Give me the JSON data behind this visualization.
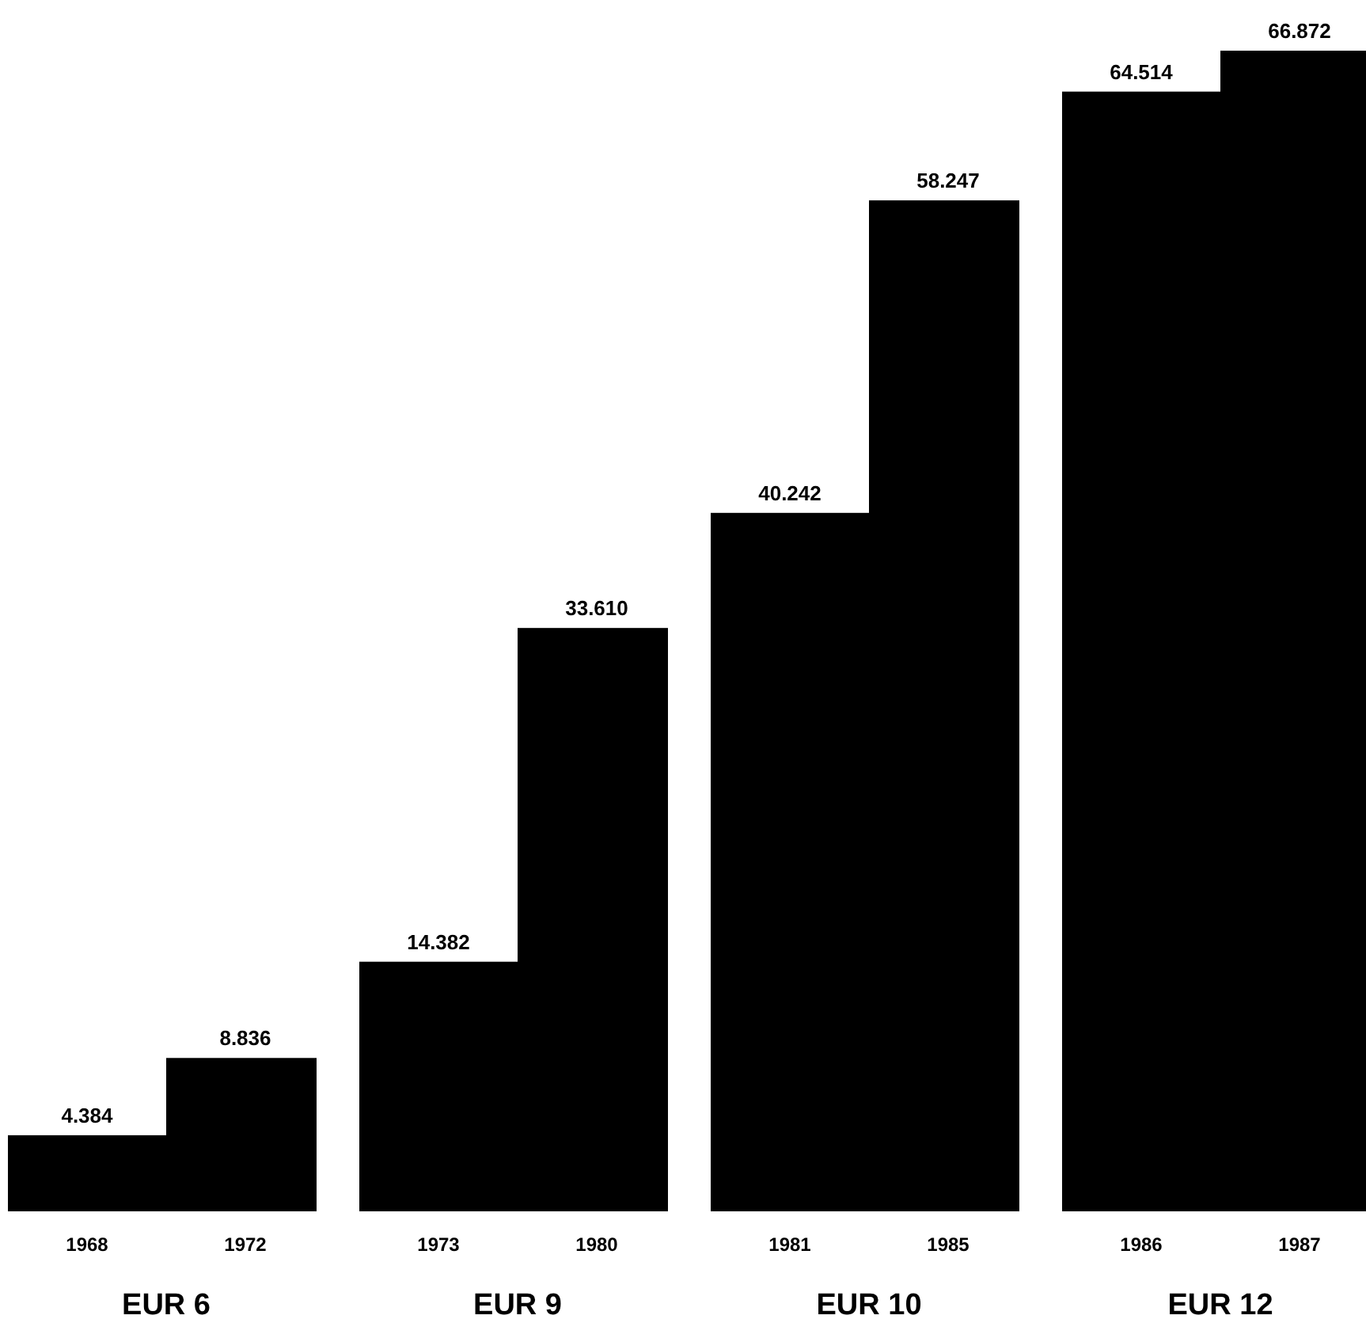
{
  "chart_data": {
    "type": "bar",
    "categories": [
      "1968",
      "1972",
      "1973",
      "1980",
      "1981",
      "1985",
      "1986",
      "1987"
    ],
    "values": [
      4.384,
      8.836,
      14.382,
      33.61,
      40.242,
      58.247,
      64.514,
      66.872
    ],
    "value_labels": [
      "4.384",
      "8.836",
      "14.382",
      "33.610",
      "40.242",
      "58.247",
      "64.514",
      "66.872"
    ],
    "color": "#000000",
    "annotations": [
      "EUR 6",
      "EUR 9",
      "EUR 10",
      "EUR 12"
    ]
  }
}
